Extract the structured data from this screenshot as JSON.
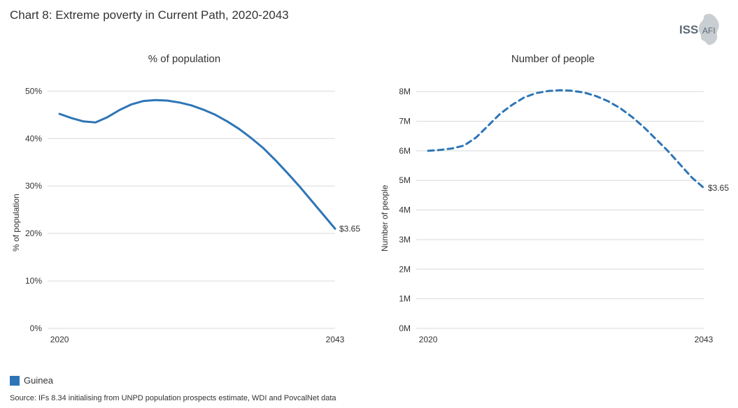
{
  "title": "Chart 8: Extreme poverty in Current Path, 2020-2043",
  "logo_text": "ISS",
  "logo_sub": "AFI",
  "logo_color_text": "#5c6a76",
  "logo_color_shape": "#c9ced3",
  "source": "Source: IFs 8.34 initialising from UNPD population prospects estimate, WDI and PovcalNet data",
  "legend": {
    "label": "Guinea",
    "color": "#2e75b6"
  },
  "grid_color": "#d9d9d9",
  "axis_color": "#333333",
  "text_color": "#333333",
  "background_color": "#ffffff",
  "left_chart": {
    "type": "line",
    "title": "% of population",
    "y_label": "% of population",
    "series_color": "#2e75b6",
    "line_width": 3,
    "dash": "solid",
    "end_annotation": "$3.65",
    "x_ticks": [
      {
        "x": 2020,
        "label": "2020"
      },
      {
        "x": 2043,
        "label": "2043"
      }
    ],
    "y_ticks": [
      {
        "y": 0,
        "label": "0%"
      },
      {
        "y": 10,
        "label": "10%"
      },
      {
        "y": 20,
        "label": "20%"
      },
      {
        "y": 30,
        "label": "30%"
      },
      {
        "y": 40,
        "label": "40%"
      },
      {
        "y": 50,
        "label": "50%"
      }
    ],
    "xlim": [
      2019,
      2043
    ],
    "ylim": [
      0,
      53
    ],
    "data": [
      {
        "x": 2020,
        "y": 45.2
      },
      {
        "x": 2021,
        "y": 44.3
      },
      {
        "x": 2022,
        "y": 43.6
      },
      {
        "x": 2023,
        "y": 43.4
      },
      {
        "x": 2024,
        "y": 44.5
      },
      {
        "x": 2025,
        "y": 46.0
      },
      {
        "x": 2026,
        "y": 47.2
      },
      {
        "x": 2027,
        "y": 47.9
      },
      {
        "x": 2028,
        "y": 48.1
      },
      {
        "x": 2029,
        "y": 48.0
      },
      {
        "x": 2030,
        "y": 47.6
      },
      {
        "x": 2031,
        "y": 47.0
      },
      {
        "x": 2032,
        "y": 46.1
      },
      {
        "x": 2033,
        "y": 45.0
      },
      {
        "x": 2034,
        "y": 43.6
      },
      {
        "x": 2035,
        "y": 42.0
      },
      {
        "x": 2036,
        "y": 40.1
      },
      {
        "x": 2037,
        "y": 38.0
      },
      {
        "x": 2038,
        "y": 35.5
      },
      {
        "x": 2039,
        "y": 32.8
      },
      {
        "x": 2040,
        "y": 30.0
      },
      {
        "x": 2041,
        "y": 27.0
      },
      {
        "x": 2042,
        "y": 24.0
      },
      {
        "x": 2043,
        "y": 21.0
      }
    ]
  },
  "right_chart": {
    "type": "line",
    "title": "Number of people",
    "y_label": "Number of people",
    "series_color": "#2e75b6",
    "line_width": 3,
    "dash": "8,6",
    "end_annotation": "$3.65",
    "x_ticks": [
      {
        "x": 2020,
        "label": "2020"
      },
      {
        "x": 2043,
        "label": "2043"
      }
    ],
    "y_ticks": [
      {
        "y": 0,
        "label": "0M"
      },
      {
        "y": 1,
        "label": "1M"
      },
      {
        "y": 2,
        "label": "2M"
      },
      {
        "y": 3,
        "label": "3M"
      },
      {
        "y": 4,
        "label": "4M"
      },
      {
        "y": 5,
        "label": "5M"
      },
      {
        "y": 6,
        "label": "6M"
      },
      {
        "y": 7,
        "label": "7M"
      },
      {
        "y": 8,
        "label": "8M"
      }
    ],
    "xlim": [
      2019,
      2043
    ],
    "ylim": [
      0,
      8.5
    ],
    "data": [
      {
        "x": 2020,
        "y": 6.0
      },
      {
        "x": 2021,
        "y": 6.03
      },
      {
        "x": 2022,
        "y": 6.08
      },
      {
        "x": 2023,
        "y": 6.18
      },
      {
        "x": 2024,
        "y": 6.45
      },
      {
        "x": 2025,
        "y": 6.85
      },
      {
        "x": 2026,
        "y": 7.25
      },
      {
        "x": 2027,
        "y": 7.55
      },
      {
        "x": 2028,
        "y": 7.8
      },
      {
        "x": 2029,
        "y": 7.95
      },
      {
        "x": 2030,
        "y": 8.02
      },
      {
        "x": 2031,
        "y": 8.05
      },
      {
        "x": 2032,
        "y": 8.03
      },
      {
        "x": 2033,
        "y": 7.97
      },
      {
        "x": 2034,
        "y": 7.85
      },
      {
        "x": 2035,
        "y": 7.68
      },
      {
        "x": 2036,
        "y": 7.45
      },
      {
        "x": 2037,
        "y": 7.15
      },
      {
        "x": 2038,
        "y": 6.8
      },
      {
        "x": 2039,
        "y": 6.4
      },
      {
        "x": 2040,
        "y": 6.0
      },
      {
        "x": 2041,
        "y": 5.55
      },
      {
        "x": 2042,
        "y": 5.1
      },
      {
        "x": 2043,
        "y": 4.75
      }
    ]
  }
}
